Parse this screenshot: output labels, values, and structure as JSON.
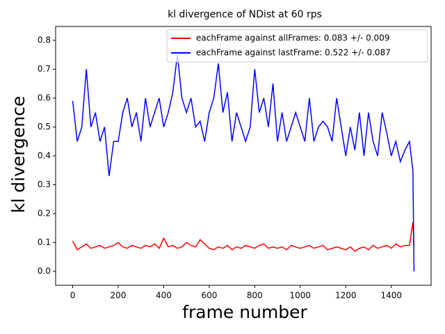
{
  "chart_data": {
    "type": "line",
    "title": "kl divergence of NDist at 60 rps",
    "x_label": "frame number",
    "y_label": "kl divergence",
    "x": [
      0,
      20,
      40,
      60,
      80,
      100,
      120,
      140,
      160,
      180,
      200,
      220,
      240,
      260,
      280,
      300,
      320,
      340,
      360,
      380,
      400,
      420,
      440,
      460,
      480,
      500,
      520,
      540,
      560,
      580,
      600,
      620,
      640,
      660,
      680,
      700,
      720,
      740,
      760,
      780,
      800,
      820,
      840,
      860,
      880,
      900,
      920,
      940,
      960,
      980,
      1000,
      1020,
      1040,
      1060,
      1080,
      1100,
      1120,
      1140,
      1160,
      1180,
      1200,
      1220,
      1240,
      1260,
      1280,
      1300,
      1320,
      1340,
      1360,
      1380,
      1400,
      1420,
      1440,
      1460,
      1480,
      1495,
      1500
    ],
    "series": [
      {
        "name": "eachFrame against allFrames: 0.083 +/- 0.009",
        "color": "#ff0000",
        "values": [
          0.105,
          0.075,
          0.085,
          0.095,
          0.08,
          0.085,
          0.09,
          0.08,
          0.085,
          0.09,
          0.1,
          0.085,
          0.08,
          0.09,
          0.085,
          0.08,
          0.09,
          0.085,
          0.095,
          0.08,
          0.115,
          0.085,
          0.09,
          0.08,
          0.085,
          0.1,
          0.09,
          0.085,
          0.11,
          0.095,
          0.08,
          0.075,
          0.085,
          0.08,
          0.09,
          0.075,
          0.085,
          0.08,
          0.09,
          0.085,
          0.08,
          0.09,
          0.095,
          0.08,
          0.085,
          0.08,
          0.085,
          0.075,
          0.09,
          0.085,
          0.08,
          0.085,
          0.09,
          0.08,
          0.085,
          0.09,
          0.075,
          0.08,
          0.085,
          0.08,
          0.075,
          0.085,
          0.07,
          0.08,
          0.085,
          0.075,
          0.09,
          0.08,
          0.085,
          0.09,
          0.08,
          0.095,
          0.085,
          0.09,
          0.09,
          0.17,
          0.09
        ]
      },
      {
        "name": "eachFrame against lastFrame: 0.522 +/- 0.087",
        "color": "#0000ff",
        "values": [
          0.59,
          0.45,
          0.5,
          0.7,
          0.5,
          0.55,
          0.45,
          0.5,
          0.33,
          0.45,
          0.45,
          0.55,
          0.6,
          0.5,
          0.55,
          0.45,
          0.6,
          0.5,
          0.55,
          0.6,
          0.5,
          0.55,
          0.62,
          0.75,
          0.6,
          0.55,
          0.6,
          0.5,
          0.52,
          0.45,
          0.55,
          0.6,
          0.72,
          0.55,
          0.62,
          0.45,
          0.55,
          0.5,
          0.45,
          0.5,
          0.7,
          0.55,
          0.6,
          0.5,
          0.65,
          0.45,
          0.55,
          0.45,
          0.5,
          0.55,
          0.5,
          0.45,
          0.6,
          0.45,
          0.5,
          0.52,
          0.5,
          0.45,
          0.6,
          0.5,
          0.4,
          0.5,
          0.42,
          0.55,
          0.4,
          0.55,
          0.45,
          0.4,
          0.55,
          0.48,
          0.4,
          0.45,
          0.38,
          0.42,
          0.45,
          0.35,
          0.0
        ]
      }
    ],
    "xlim": [
      -75,
      1575
    ],
    "ylim": [
      -0.048,
      0.848
    ],
    "xticks": [
      0,
      200,
      400,
      600,
      800,
      1000,
      1200,
      1400
    ],
    "yticks": [
      {
        "value": 0,
        "label": "0.0"
      },
      0.1,
      0.2,
      0.3,
      0.4,
      0.5,
      0.6,
      0.7,
      0.8
    ],
    "legend": "upper right"
  }
}
